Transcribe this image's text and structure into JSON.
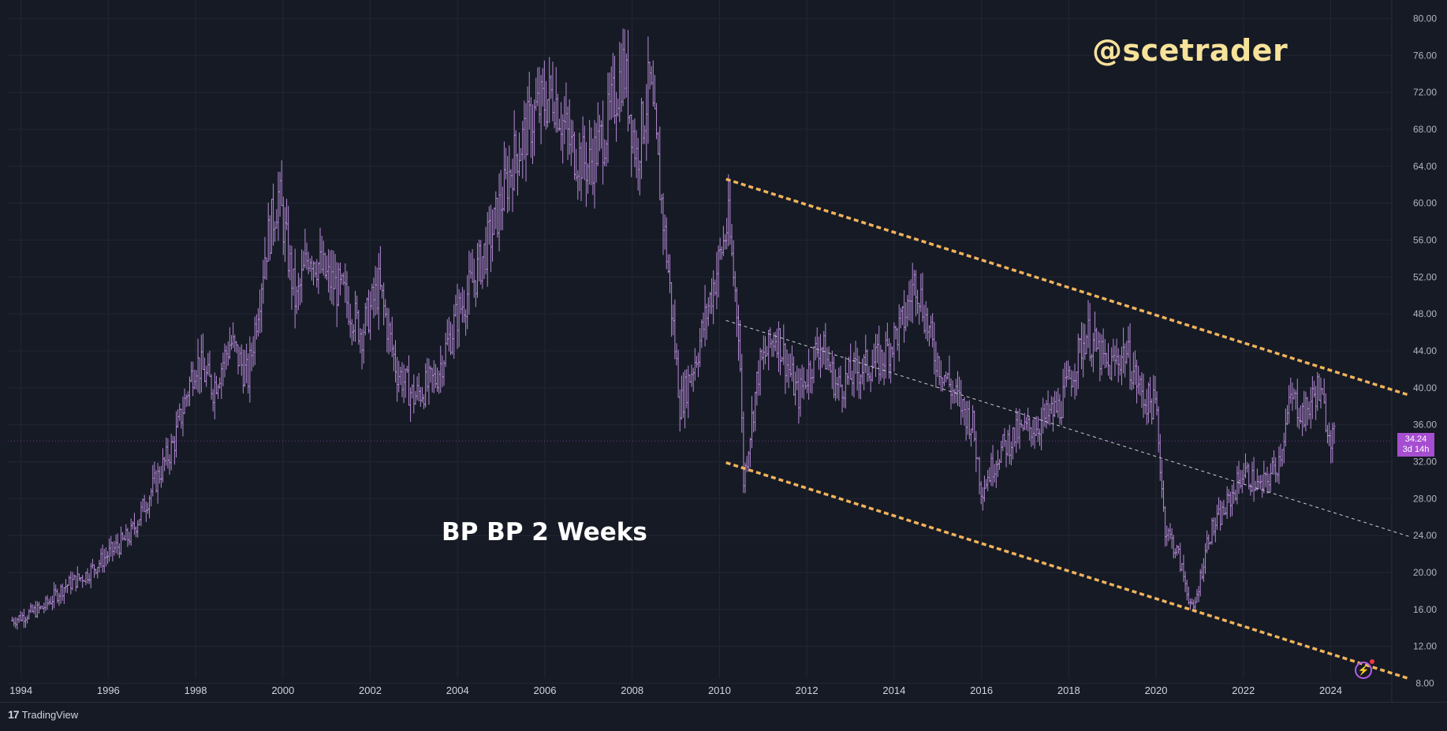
{
  "watermark": "@scetrader",
  "symbol_label": "BP BP 2 Weeks",
  "price_tag": {
    "price": "34.24",
    "countdown": "3d 14h"
  },
  "branding": {
    "name": "TradingView"
  },
  "colors": {
    "background": "#161a25",
    "candles": "#b58ad6",
    "channel": "#f0b35b",
    "midline": "#c9cdd6",
    "grid": "#232734",
    "price_tag": "#a64ed0"
  },
  "icons": {
    "flash": "lightning-icon"
  },
  "chart_data": {
    "type": "line",
    "title": "BP BP 2 Weeks",
    "xlim": [
      1993.7,
      2025.4
    ],
    "ylim": [
      6,
      82
    ],
    "y_ticks": [
      "80.00",
      "76.00",
      "72.00",
      "68.00",
      "64.00",
      "60.00",
      "56.00",
      "52.00",
      "48.00",
      "44.00",
      "40.00",
      "36.00",
      "32.00",
      "28.00",
      "24.00",
      "20.00",
      "16.00",
      "12.00",
      "8.00"
    ],
    "x_ticks": [
      "1994",
      "1996",
      "1998",
      "2000",
      "2002",
      "2004",
      "2006",
      "2008",
      "2010",
      "2012",
      "2014",
      "2016",
      "2018",
      "2020",
      "2022",
      "2024"
    ],
    "series": [
      {
        "style": "ohlc-bars",
        "points": [
          [
            1993.8,
            14.8
          ],
          [
            1994.5,
            16.2
          ],
          [
            1995.0,
            18.5
          ],
          [
            1995.5,
            19.8
          ],
          [
            1996.0,
            22.0
          ],
          [
            1996.5,
            24.0
          ],
          [
            1997.0,
            29.0
          ],
          [
            1997.5,
            34.0
          ],
          [
            1998.0,
            43.0
          ],
          [
            1998.4,
            40.0
          ],
          [
            1998.8,
            45.0
          ],
          [
            1999.2,
            41.0
          ],
          [
            1999.6,
            55.0
          ],
          [
            1999.9,
            61.0
          ],
          [
            2000.3,
            49.0
          ],
          [
            2000.6,
            55.0
          ],
          [
            2001.0,
            52.0
          ],
          [
            2001.4,
            50.0
          ],
          [
            2001.8,
            46.0
          ],
          [
            2002.2,
            51.0
          ],
          [
            2002.6,
            42.0
          ],
          [
            2003.0,
            39.0
          ],
          [
            2003.5,
            41.0
          ],
          [
            2004.0,
            48.0
          ],
          [
            2004.4,
            52.0
          ],
          [
            2004.8,
            57.0
          ],
          [
            2005.3,
            65.0
          ],
          [
            2005.8,
            70.0
          ],
          [
            2006.2,
            72.0
          ],
          [
            2006.6,
            66.0
          ],
          [
            2007.0,
            64.0
          ],
          [
            2007.4,
            68.0
          ],
          [
            2007.8,
            75.0
          ],
          [
            2008.1,
            65.0
          ],
          [
            2008.4,
            73.0
          ],
          [
            2008.8,
            54.0
          ],
          [
            2009.1,
            38.0
          ],
          [
            2009.5,
            44.0
          ],
          [
            2009.9,
            52.0
          ],
          [
            2010.2,
            58.0
          ],
          [
            2010.45,
            46.0
          ],
          [
            2010.55,
            30.0
          ],
          [
            2010.9,
            42.0
          ],
          [
            2011.3,
            46.0
          ],
          [
            2011.8,
            39.0
          ],
          [
            2012.3,
            45.0
          ],
          [
            2012.7,
            40.0
          ],
          [
            2013.2,
            42.0
          ],
          [
            2013.7,
            43.0
          ],
          [
            2014.2,
            47.0
          ],
          [
            2014.5,
            52.0
          ],
          [
            2014.9,
            44.0
          ],
          [
            2015.3,
            40.0
          ],
          [
            2015.8,
            36.0
          ],
          [
            2016.0,
            29.0
          ],
          [
            2016.4,
            33.0
          ],
          [
            2016.8,
            35.0
          ],
          [
            2017.3,
            36.0
          ],
          [
            2017.8,
            38.0
          ],
          [
            2018.1,
            42.0
          ],
          [
            2018.4,
            46.0
          ],
          [
            2018.9,
            42.0
          ],
          [
            2019.3,
            44.0
          ],
          [
            2019.7,
            39.0
          ],
          [
            2020.0,
            38.0
          ],
          [
            2020.2,
            25.0
          ],
          [
            2020.5,
            22.0
          ],
          [
            2020.85,
            15.5
          ],
          [
            2021.2,
            24.0
          ],
          [
            2021.6,
            27.0
          ],
          [
            2022.0,
            31.0
          ],
          [
            2022.4,
            29.0
          ],
          [
            2022.8,
            32.0
          ],
          [
            2023.1,
            39.0
          ],
          [
            2023.4,
            37.0
          ],
          [
            2023.7,
            40.0
          ],
          [
            2024.0,
            35.0
          ],
          [
            2024.1,
            34.24
          ]
        ]
      },
      {
        "name": "",
        "style": "dashed",
        "role": "channel-upper",
        "x": [
          2010.15,
          2025.8
        ],
        "y": [
          62.6,
          39.2
        ]
      },
      {
        "name": "",
        "style": "dashed",
        "role": "channel-lower",
        "x": [
          2010.15,
          2025.8
        ],
        "y": [
          31.9,
          8.5
        ]
      },
      {
        "name": "",
        "style": "dashed-thin",
        "role": "channel-mid",
        "x": [
          2010.15,
          2025.8
        ],
        "y": [
          47.3,
          23.9
        ]
      }
    ],
    "last_price": 34.24,
    "grid": true,
    "y_axis_position": "right"
  }
}
